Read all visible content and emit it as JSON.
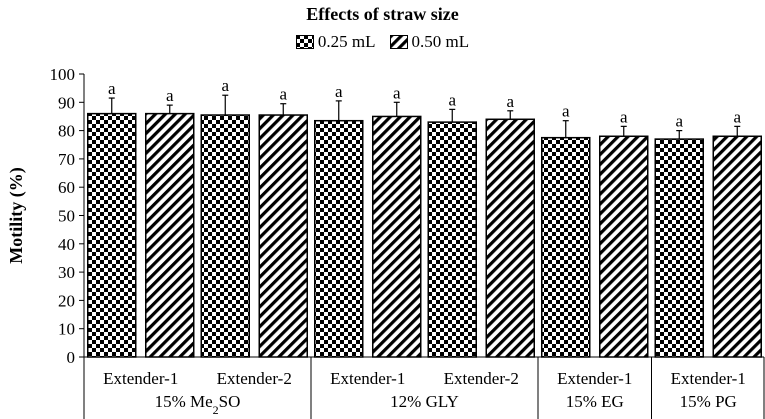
{
  "chart_data": {
    "type": "bar",
    "title": "Effects of straw size",
    "ylabel": "Motility (%)",
    "xlabel": "",
    "ylim": [
      0,
      100
    ],
    "yticks": [
      0,
      10,
      20,
      30,
      40,
      50,
      60,
      70,
      80,
      90,
      100
    ],
    "grid": false,
    "legend_position": "top-center",
    "categories": [
      "Extender-1",
      "Extender-2",
      "Extender-1",
      "Extender-2",
      "Extender-1",
      "Extender-1"
    ],
    "groups": [
      {
        "label": "15% Me2SO",
        "label_main": "15% Me",
        "label_sub": "2",
        "label_tail": "SO",
        "span": [
          0,
          1
        ]
      },
      {
        "label": "12% GLY",
        "span": [
          2,
          3
        ]
      },
      {
        "label": "15% EG",
        "span": [
          4,
          4
        ]
      },
      {
        "label": "15% PG",
        "span": [
          5,
          5
        ]
      }
    ],
    "series": [
      {
        "name": "0.25 mL",
        "pattern": "checker",
        "values": [
          86,
          85.5,
          83.5,
          83,
          77.5,
          77
        ],
        "errors": [
          5.5,
          7,
          7,
          4.5,
          6,
          3
        ],
        "labels": [
          "a",
          "a",
          "a",
          "a",
          "a",
          "a"
        ]
      },
      {
        "name": "0.50 mL",
        "pattern": "hatch",
        "values": [
          86,
          85.5,
          85,
          84,
          78,
          78
        ],
        "errors": [
          3,
          4,
          5,
          3,
          3.5,
          3.5
        ],
        "labels": [
          "a",
          "a",
          "a",
          "a",
          "a",
          "a"
        ]
      }
    ],
    "colors": {
      "fill": "#000000",
      "background": "#ffffff",
      "axis": "#000000"
    }
  }
}
